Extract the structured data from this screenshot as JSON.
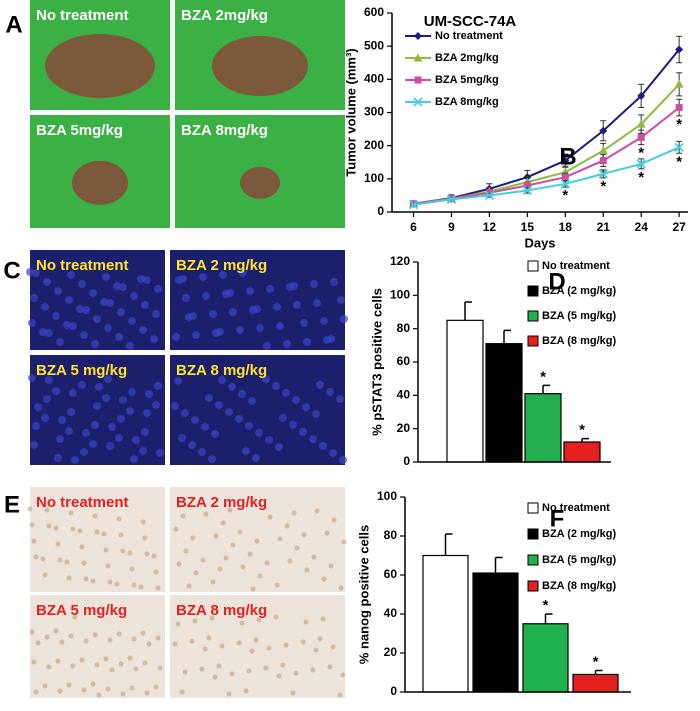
{
  "image_panels": [
    {
      "label": "A",
      "tiles": [
        "No treatment",
        "BZA 2mg/kg",
        "BZA 5mg/kg",
        "BZA 8mg/kg"
      ]
    },
    {
      "label": "C",
      "tiles": [
        "No treatment",
        "BZA 2 mg/kg",
        "BZA 5 mg/kg",
        "BZA 8 mg/kg"
      ]
    },
    {
      "label": "E",
      "tiles": [
        "No treatment",
        "BZA 2 mg/kg",
        "BZA 5 mg/kg",
        "BZA 8 mg/kg"
      ]
    }
  ],
  "chart_data": [
    {
      "type": "line",
      "panel_label": "B",
      "title": "UM-SCC-74A",
      "x_label": "Days",
      "y_label": "Tumor volume (mm³)",
      "x": [
        6,
        9,
        12,
        15,
        18,
        21,
        24,
        27
      ],
      "xlim": [
        4.3,
        27.7
      ],
      "xticks": [
        6,
        9,
        12,
        15,
        18,
        21,
        24,
        27
      ],
      "ylim": [
        0,
        600
      ],
      "yticks": [
        0,
        100,
        200,
        300,
        400,
        500,
        600
      ],
      "significance_mark": "*",
      "series": [
        {
          "name": "No treatment",
          "color": "#1c1c86",
          "marker": "diamond",
          "values": [
            25,
            42,
            70,
            105,
            155,
            245,
            350,
            490
          ],
          "errors": [
            8,
            10,
            15,
            20,
            20,
            30,
            35,
            40
          ],
          "significant": [
            false,
            false,
            false,
            false,
            false,
            false,
            false,
            false
          ]
        },
        {
          "name": "BZA 2mg/kg",
          "color": "#8dbd3c",
          "marker": "triangle",
          "values": [
            25,
            40,
            62,
            90,
            120,
            185,
            265,
            385
          ],
          "errors": [
            6,
            8,
            12,
            15,
            18,
            22,
            28,
            35
          ],
          "significant": [
            false,
            false,
            false,
            false,
            false,
            false,
            false,
            false
          ]
        },
        {
          "name": "BZA 5mg/kg",
          "color": "#cf4ca0",
          "marker": "square",
          "values": [
            25,
            40,
            58,
            80,
            105,
            155,
            225,
            315
          ],
          "errors": [
            5,
            6,
            8,
            10,
            12,
            18,
            22,
            25
          ],
          "significant": [
            false,
            false,
            false,
            false,
            false,
            true,
            true,
            true
          ]
        },
        {
          "name": "BZA 8mg/kg",
          "color": "#45cde0",
          "marker": "cross",
          "values": [
            22,
            38,
            50,
            65,
            85,
            115,
            145,
            195
          ],
          "errors": [
            4,
            5,
            6,
            8,
            10,
            12,
            15,
            18
          ],
          "significant": [
            false,
            false,
            false,
            false,
            true,
            true,
            true,
            true
          ]
        }
      ]
    },
    {
      "type": "bar",
      "panel_label": "D",
      "y_label": "% pSTAT3 positive cells",
      "categories": [
        "No treatment",
        "BZA (2 mg/kg)",
        "BZA (5 mg/kg)",
        "BZA (8 mg/kg)"
      ],
      "colors": [
        "#ffffff",
        "#000000",
        "#22b04f",
        "#e42020"
      ],
      "values": [
        85,
        71,
        41,
        12
      ],
      "errors": [
        11,
        8,
        5,
        2
      ],
      "significant": [
        false,
        false,
        true,
        true
      ],
      "significance_mark": "*",
      "ylim": [
        0,
        120
      ],
      "yticks": [
        0,
        20,
        40,
        60,
        80,
        100,
        120
      ]
    },
    {
      "type": "bar",
      "panel_label": "F",
      "y_label": "% nanog positive cells",
      "categories": [
        "No treatment",
        "BZA (2 mg/kg)",
        "BZA (5 mg/kg)",
        "BZA (8 mg/kg)"
      ],
      "colors": [
        "#ffffff",
        "#000000",
        "#22b04f",
        "#e42020"
      ],
      "values": [
        70,
        61,
        35,
        9
      ],
      "errors": [
        11,
        8,
        5,
        2
      ],
      "significant": [
        false,
        false,
        true,
        true
      ],
      "significance_mark": "*",
      "ylim": [
        0,
        100
      ],
      "yticks": [
        0,
        20,
        40,
        60,
        80,
        100
      ]
    }
  ]
}
